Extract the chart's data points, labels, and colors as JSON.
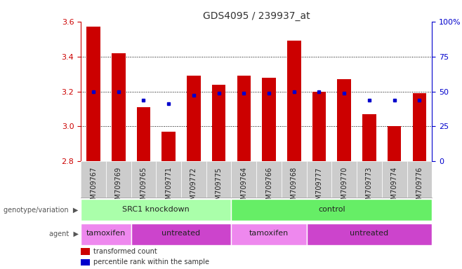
{
  "title": "GDS4095 / 239937_at",
  "samples": [
    "GSM709767",
    "GSM709769",
    "GSM709765",
    "GSM709771",
    "GSM709772",
    "GSM709775",
    "GSM709764",
    "GSM709766",
    "GSM709768",
    "GSM709777",
    "GSM709770",
    "GSM709773",
    "GSM709774",
    "GSM709776"
  ],
  "bar_values": [
    3.57,
    3.42,
    3.11,
    2.97,
    3.29,
    3.24,
    3.29,
    3.28,
    3.49,
    3.2,
    3.27,
    3.07,
    3.0,
    3.19
  ],
  "dot_values": [
    3.2,
    3.2,
    3.15,
    3.13,
    3.18,
    3.19,
    3.19,
    3.19,
    3.2,
    3.2,
    3.19,
    3.15,
    3.15,
    3.15
  ],
  "y_min": 2.8,
  "y_max": 3.6,
  "y_ticks": [
    2.8,
    3.0,
    3.2,
    3.4,
    3.6
  ],
  "right_y_ticks": [
    0,
    25,
    50,
    75,
    100
  ],
  "right_y_labels": [
    "0",
    "25",
    "50",
    "75",
    "100%"
  ],
  "bar_color": "#cc0000",
  "dot_color": "#0000cc",
  "background_color": "#ffffff",
  "grid_color": "#000000",
  "xlabels_bg": "#cccccc",
  "genotype_groups": [
    {
      "label": "SRC1 knockdown",
      "start": 0,
      "end": 6,
      "color": "#aaffaa"
    },
    {
      "label": "control",
      "start": 6,
      "end": 14,
      "color": "#66ee66"
    }
  ],
  "agent_groups": [
    {
      "label": "tamoxifen",
      "start": 0,
      "end": 2,
      "color": "#ee88ee"
    },
    {
      "label": "untreated",
      "start": 2,
      "end": 6,
      "color": "#cc44cc"
    },
    {
      "label": "tamoxifen",
      "start": 6,
      "end": 9,
      "color": "#ee88ee"
    },
    {
      "label": "untreated",
      "start": 9,
      "end": 14,
      "color": "#cc44cc"
    }
  ],
  "legend_items": [
    {
      "label": "transformed count",
      "color": "#cc0000"
    },
    {
      "label": "percentile rank within the sample",
      "color": "#0000cc"
    }
  ],
  "left_labels": [
    {
      "text": "genotype/variation",
      "row": "geno"
    },
    {
      "text": "agent",
      "row": "agent"
    }
  ],
  "xlabel_color": "#cc0000",
  "tick_label_color_left": "#cc0000",
  "tick_label_color_right": "#0000cc",
  "title_fontsize": 10,
  "tick_fontsize": 8,
  "sample_fontsize": 7,
  "row_fontsize": 8,
  "legend_fontsize": 7
}
